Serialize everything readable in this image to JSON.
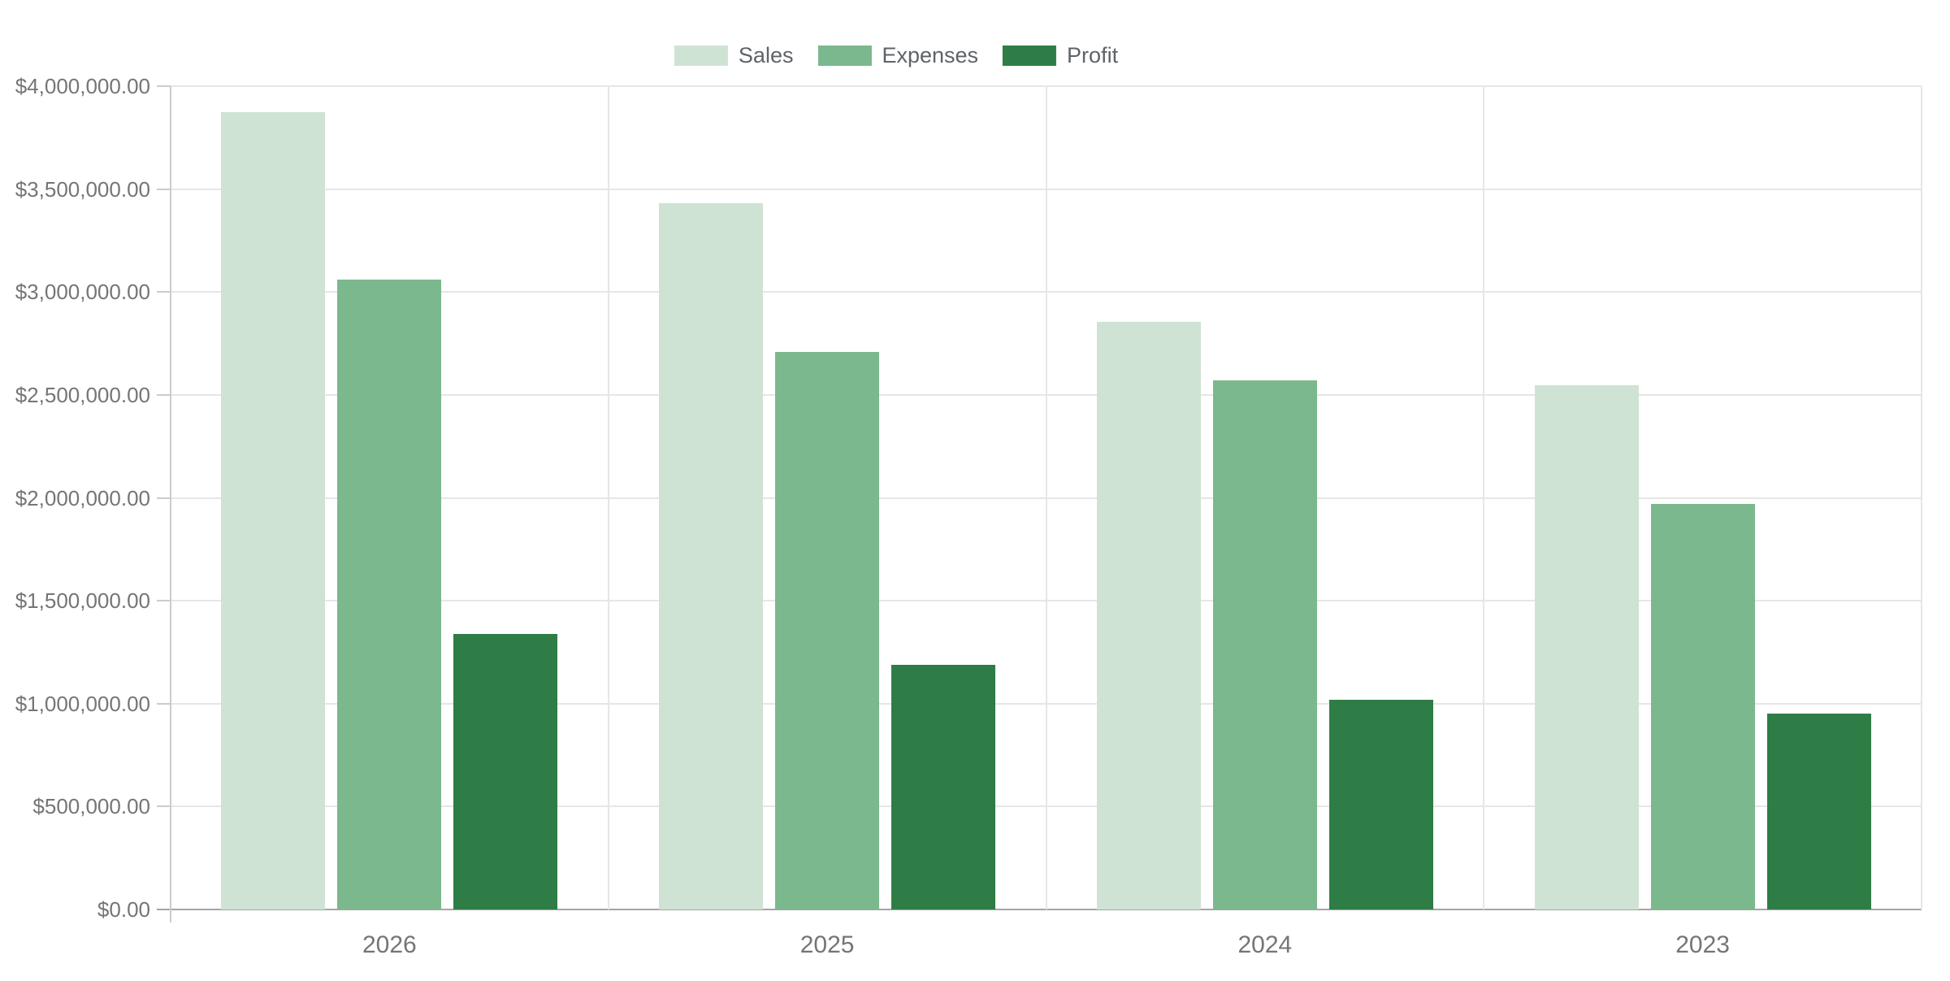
{
  "chart_data": {
    "type": "bar",
    "title": "",
    "categories": [
      "2026",
      "2025",
      "2024",
      "2023"
    ],
    "series": [
      {
        "name": "Sales",
        "color": "#cfe3d4",
        "values": [
          3875000,
          3430000,
          2855000,
          2545000
        ]
      },
      {
        "name": "Expenses",
        "color": "#7bb88d",
        "values": [
          3060000,
          2710000,
          2570000,
          1970000
        ]
      },
      {
        "name": "Profit",
        "color": "#2e7d46",
        "values": [
          1340000,
          1190000,
          1020000,
          950000
        ]
      }
    ],
    "xlabel": "",
    "ylabel": "",
    "ylim": [
      0,
      4000000
    ],
    "y_tick_step": 500000,
    "y_tick_labels": [
      "$0.00",
      "$500,000.00",
      "$1,000,000.00",
      "$1,500,000.00",
      "$2,000,000.00",
      "$2,500,000.00",
      "$3,000,000.00",
      "$3,500,000.00",
      "$4,000,000.00"
    ],
    "legend_position": "top-center",
    "grid": true
  },
  "colors": {
    "background": "#ffffff",
    "gridline": "#e6e6e6",
    "baseline": "#a5a5a5",
    "axis_line": "#cccccc",
    "axis_text": "#757575",
    "legend_text": "#5f6368"
  }
}
